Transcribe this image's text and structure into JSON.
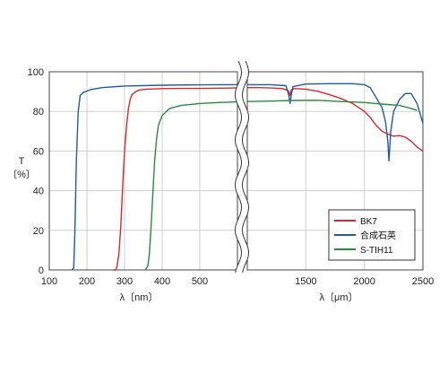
{
  "chart_data": {
    "type": "line",
    "ylabel": [
      "T",
      "〔%〕"
    ],
    "ylim": [
      0,
      100
    ],
    "yticks": [
      0,
      20,
      40,
      60,
      80,
      100
    ],
    "grid": true,
    "legend_position": "lower-right",
    "panels": [
      {
        "xlabel": "λ〔nm〕",
        "xlim": [
          100,
          600
        ],
        "xtick_values": [
          100,
          200,
          300,
          400,
          500
        ],
        "xtick_labels": [
          "100",
          "200",
          "300",
          "400",
          "500"
        ]
      },
      {
        "xlabel": "λ〔μm〕",
        "xlim": [
          1000,
          2500
        ],
        "xtick_values": [
          1500,
          2000,
          2500
        ],
        "xtick_labels": [
          "1500",
          "2000",
          "2500"
        ]
      }
    ],
    "series": [
      {
        "name": "BK7",
        "color": "#d42a2a",
        "short": [
          [
            270,
            0
          ],
          [
            277,
            0
          ],
          [
            280,
            2
          ],
          [
            285,
            8
          ],
          [
            290,
            22
          ],
          [
            295,
            42
          ],
          [
            300,
            60
          ],
          [
            305,
            72
          ],
          [
            310,
            81
          ],
          [
            315,
            86
          ],
          [
            320,
            88.5
          ],
          [
            330,
            90
          ],
          [
            340,
            90.8
          ],
          [
            360,
            91.2
          ],
          [
            400,
            91.5
          ],
          [
            450,
            91.6
          ],
          [
            500,
            91.6
          ],
          [
            550,
            91.7
          ],
          [
            600,
            91.8
          ]
        ],
        "long": [
          [
            1000,
            92
          ],
          [
            1100,
            92
          ],
          [
            1200,
            91.8
          ],
          [
            1300,
            91.5
          ],
          [
            1350,
            90.5
          ],
          [
            1365,
            88
          ],
          [
            1375,
            90.8
          ],
          [
            1400,
            91.5
          ],
          [
            1500,
            91.2
          ],
          [
            1600,
            90.2
          ],
          [
            1700,
            88.5
          ],
          [
            1800,
            86.5
          ],
          [
            1900,
            84
          ],
          [
            1950,
            82
          ],
          [
            2000,
            80
          ],
          [
            2050,
            77
          ],
          [
            2100,
            73
          ],
          [
            2150,
            70
          ],
          [
            2200,
            68.5
          ],
          [
            2250,
            67.5
          ],
          [
            2300,
            67.8
          ],
          [
            2350,
            67
          ],
          [
            2400,
            65
          ],
          [
            2450,
            62
          ],
          [
            2500,
            60
          ]
        ]
      },
      {
        "name": "合成石英",
        "color": "#1f5aa6",
        "short": [
          [
            160,
            0
          ],
          [
            165,
            1
          ],
          [
            168,
            20
          ],
          [
            172,
            55
          ],
          [
            177,
            80
          ],
          [
            182,
            88
          ],
          [
            190,
            89.5
          ],
          [
            210,
            91
          ],
          [
            240,
            92
          ],
          [
            300,
            92.8
          ],
          [
            400,
            93.2
          ],
          [
            500,
            93.4
          ],
          [
            600,
            93.5
          ]
        ],
        "long": [
          [
            1000,
            93.5
          ],
          [
            1200,
            93.5
          ],
          [
            1330,
            93
          ],
          [
            1355,
            88
          ],
          [
            1365,
            84
          ],
          [
            1375,
            88
          ],
          [
            1390,
            92.5
          ],
          [
            1500,
            93.8
          ],
          [
            1700,
            94
          ],
          [
            1900,
            94
          ],
          [
            2000,
            93.5
          ],
          [
            2050,
            92
          ],
          [
            2100,
            87
          ],
          [
            2150,
            82
          ],
          [
            2180,
            75
          ],
          [
            2200,
            65
          ],
          [
            2210,
            55
          ],
          [
            2225,
            70
          ],
          [
            2250,
            80
          ],
          [
            2300,
            86
          ],
          [
            2350,
            89
          ],
          [
            2400,
            89
          ],
          [
            2450,
            84
          ],
          [
            2500,
            74
          ]
        ]
      },
      {
        "name": "S-TIH11",
        "color": "#2c8a3a",
        "short": [
          [
            355,
            0
          ],
          [
            362,
            2
          ],
          [
            366,
            8
          ],
          [
            370,
            20
          ],
          [
            375,
            38
          ],
          [
            380,
            55
          ],
          [
            385,
            66
          ],
          [
            390,
            73
          ],
          [
            400,
            78
          ],
          [
            420,
            81.5
          ],
          [
            450,
            83
          ],
          [
            500,
            84
          ],
          [
            550,
            84.5
          ],
          [
            600,
            84.8
          ]
        ],
        "long": [
          [
            1000,
            85
          ],
          [
            1200,
            85.2
          ],
          [
            1400,
            85.5
          ],
          [
            1600,
            85.6
          ],
          [
            1800,
            85
          ],
          [
            2000,
            84.5
          ],
          [
            2100,
            84
          ],
          [
            2200,
            83.5
          ],
          [
            2300,
            83
          ],
          [
            2400,
            81.5
          ],
          [
            2450,
            80.5
          ]
        ]
      }
    ]
  }
}
